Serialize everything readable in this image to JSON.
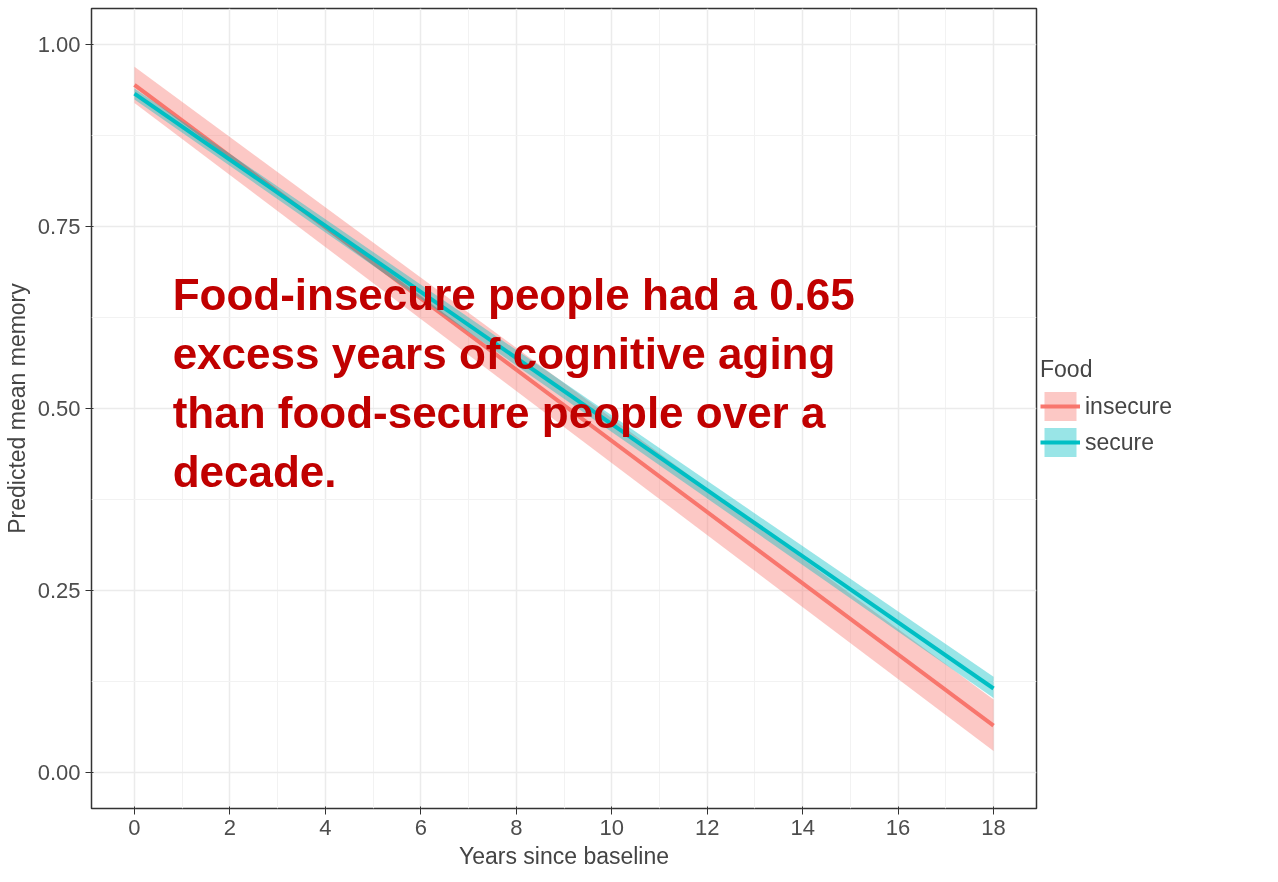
{
  "chart_data": {
    "type": "line",
    "xlabel": "Years since baseline",
    "ylabel": "Predicted mean memory",
    "legend_title": "Food",
    "x": [
      0,
      18
    ],
    "series": [
      {
        "name": "insecure",
        "color": "#f8766d",
        "values": [
          0.945,
          0.064
        ],
        "lower": [
          0.92,
          0.029
        ],
        "upper": [
          0.97,
          0.1
        ]
      },
      {
        "name": "secure",
        "color": "#00bfc4",
        "values": [
          0.933,
          0.115
        ],
        "lower": [
          0.925,
          0.102
        ],
        "upper": [
          0.94,
          0.131
        ]
      }
    ],
    "xlim": [
      -0.9,
      18.9
    ],
    "ylim": [
      -0.05,
      1.05
    ],
    "xticks": [
      0,
      2,
      4,
      6,
      8,
      10,
      12,
      14,
      16,
      18
    ],
    "yticks": [
      {
        "value": 0,
        "label": "0.00"
      },
      {
        "value": 0.25,
        "label": "0.25"
      },
      {
        "value": 0.5,
        "label": "0.50"
      },
      {
        "value": 0.75,
        "label": "0.75"
      },
      {
        "value": 1,
        "label": "1.00"
      }
    ],
    "grid": true,
    "legend": "right",
    "marker": "none",
    "line_style": "solid",
    "annotations": [
      "Food-insecure people had a 0.65 excess years of cognitive aging than food-secure people over a decade."
    ]
  }
}
